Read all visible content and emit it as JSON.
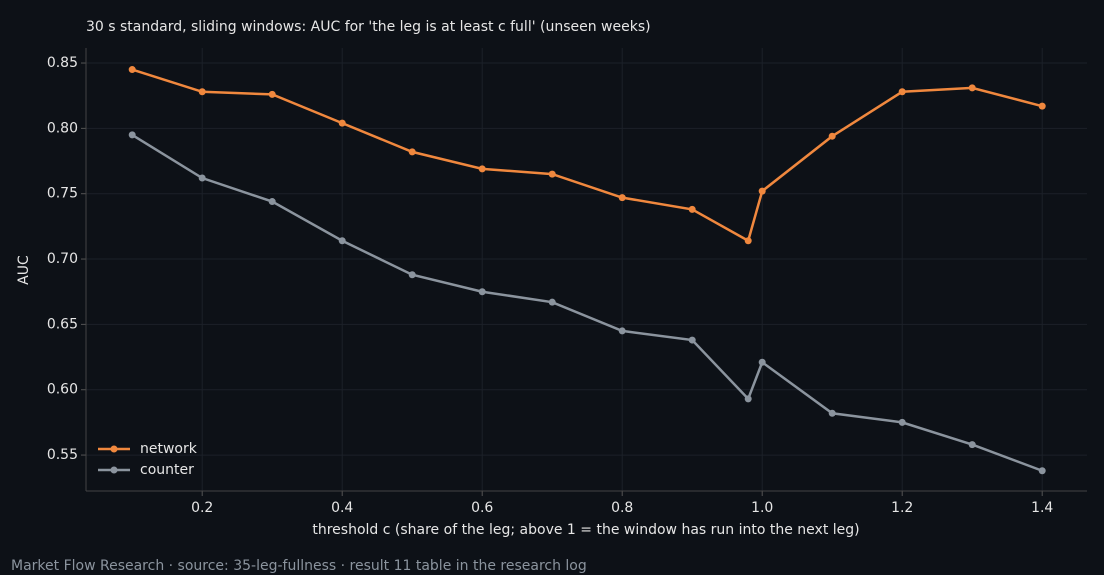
{
  "chart_data": {
    "type": "line",
    "title": "30 s standard, sliding windows: AUC for 'the leg is at least c full' (unseen weeks)",
    "x_label": "threshold c (share of the leg; above 1 = the window has run into the next leg)",
    "y_label": "AUC",
    "x": [
      0.1,
      0.2,
      0.3,
      0.4,
      0.5,
      0.6,
      0.7,
      0.8,
      0.9,
      0.98,
      1.0,
      1.1,
      1.2,
      1.3,
      1.4
    ],
    "series": [
      {
        "name": "network",
        "color": "#f0883e",
        "values": [
          0.845,
          0.828,
          0.826,
          0.804,
          0.782,
          0.769,
          0.765,
          0.747,
          0.738,
          0.714,
          0.752,
          0.794,
          0.828,
          0.831,
          0.817
        ]
      },
      {
        "name": "counter",
        "color": "#8b949e",
        "values": [
          0.795,
          0.762,
          0.744,
          0.714,
          0.688,
          0.675,
          0.667,
          0.645,
          0.638,
          0.593,
          0.621,
          0.582,
          0.575,
          0.558,
          0.538
        ]
      }
    ],
    "xlim": [
      0.034,
      1.464
    ],
    "ylim": [
      0.5225,
      0.8615
    ],
    "xticks": [
      0.2,
      0.4,
      0.6,
      0.8,
      {
        "value": 1,
        "label": "1.0"
      },
      1.2,
      1.4
    ],
    "yticks": [
      0.55,
      {
        "value": 0.6,
        "label": "0.60"
      },
      0.65,
      {
        "value": 0.7,
        "label": "0.70"
      },
      0.75,
      {
        "value": 0.8,
        "label": "0.80"
      },
      0.85
    ],
    "grid": true,
    "legend": "lower left"
  },
  "footer": "Market Flow Research · source: 35-leg-fullness · result 11 table in the research log"
}
